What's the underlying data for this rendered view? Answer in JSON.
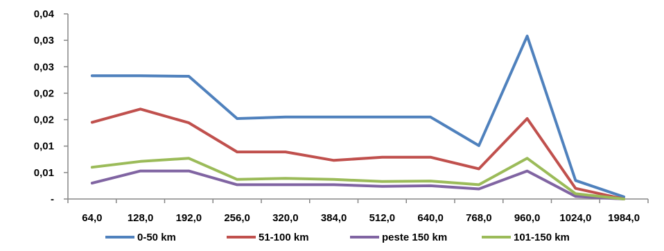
{
  "chart_data": {
    "type": "line",
    "categories": [
      "64,0",
      "128,0",
      "192,0",
      "256,0",
      "320,0",
      "384,0",
      "512,0",
      "640,0",
      "768,0",
      "960,0",
      "1024,0",
      "1984,0"
    ],
    "y_tick_labels": [
      "-",
      "0,01",
      "0,01",
      "0,02",
      "0,02",
      "0,03",
      "0,03",
      "0,04"
    ],
    "ylim": [
      0,
      0.035
    ],
    "grid": false,
    "legend_position": "bottom",
    "series": [
      {
        "name": "0-50 km",
        "color": "#4F81BD",
        "values": [
          0.0233,
          0.0233,
          0.0232,
          0.0152,
          0.0155,
          0.0155,
          0.0155,
          0.0155,
          0.0101,
          0.0308,
          0.0035,
          0.0004
        ]
      },
      {
        "name": "51-100 km",
        "color": "#C0504D",
        "values": [
          0.0145,
          0.017,
          0.0144,
          0.0089,
          0.0089,
          0.0073,
          0.0079,
          0.0079,
          0.0057,
          0.0152,
          0.002,
          0.0
        ]
      },
      {
        "name": "peste 150 km",
        "color": "#8064A2",
        "values": [
          0.003,
          0.0053,
          0.0053,
          0.0027,
          0.0027,
          0.0027,
          0.0024,
          0.0025,
          0.0019,
          0.0053,
          0.0005,
          0.0
        ]
      },
      {
        "name": "101-150 km",
        "color": "#9BBB59",
        "values": [
          0.006,
          0.0071,
          0.0077,
          0.0037,
          0.0039,
          0.0037,
          0.0033,
          0.0034,
          0.0027,
          0.0077,
          0.001,
          0.0
        ]
      }
    ]
  }
}
